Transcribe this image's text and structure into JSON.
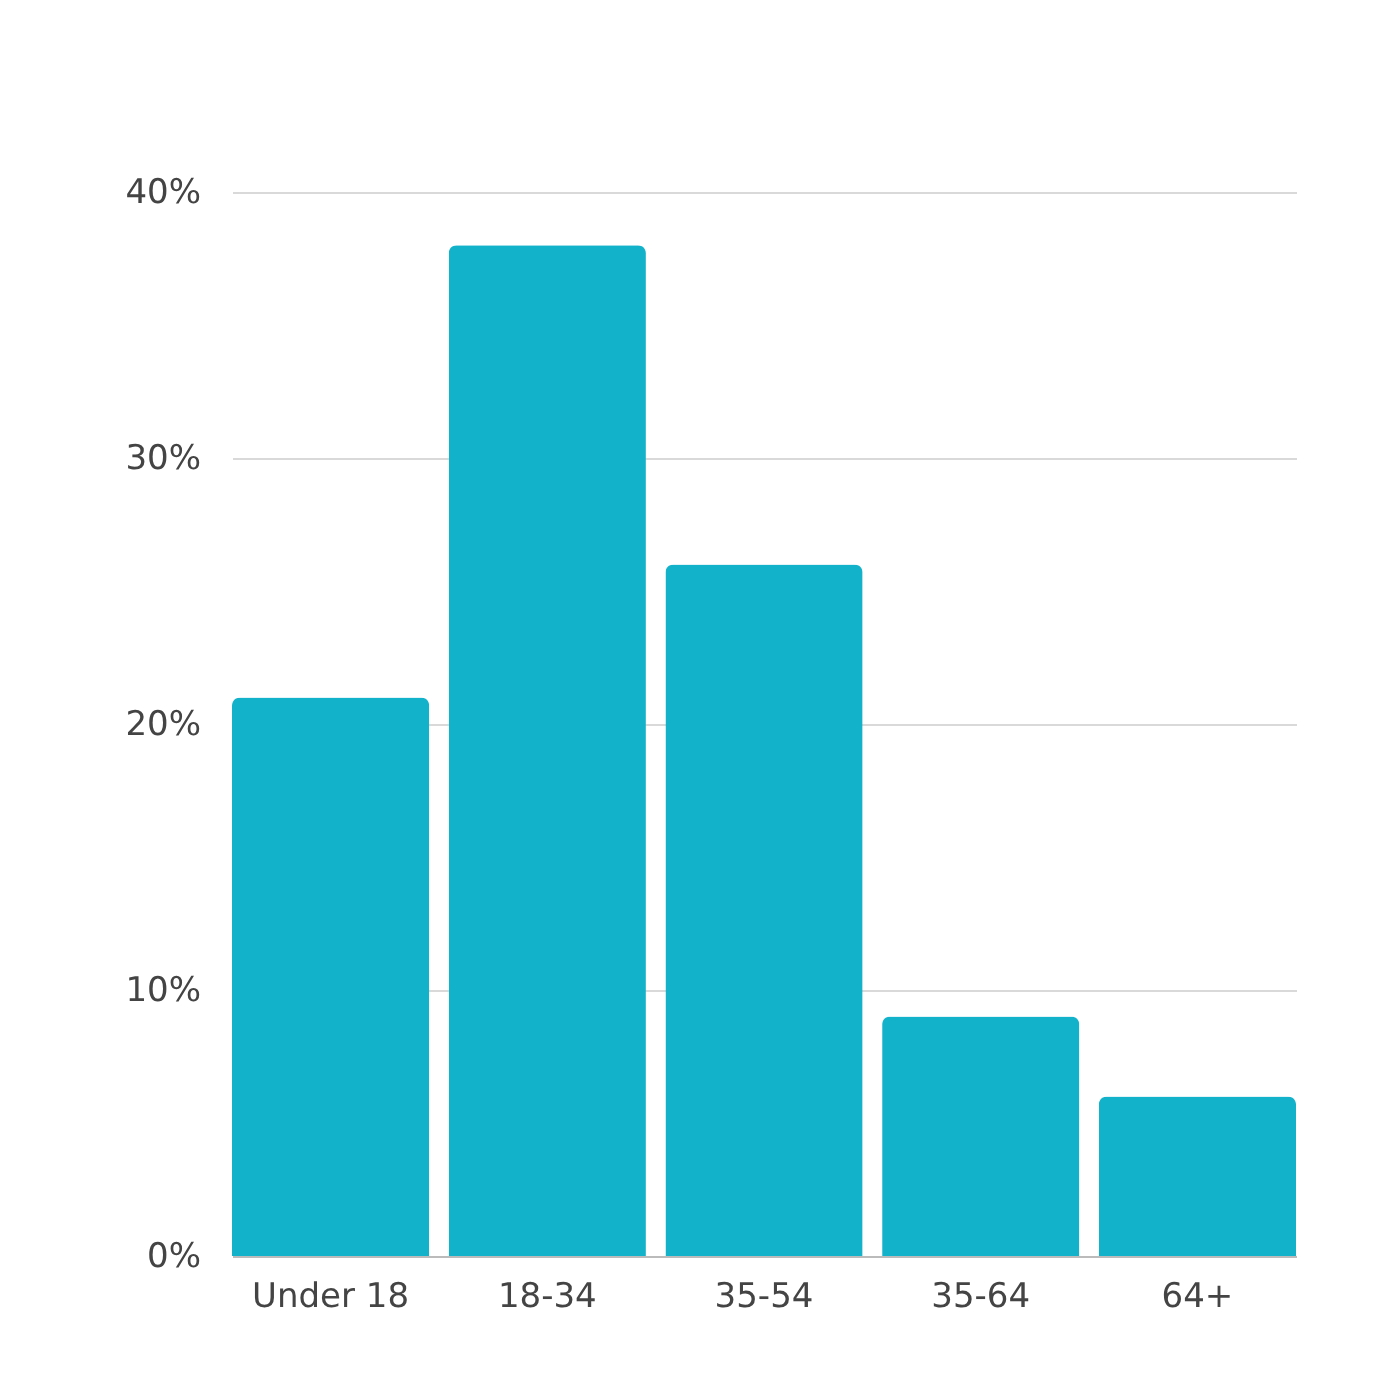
{
  "chart_data": {
    "type": "bar",
    "categories": [
      "Under 18",
      "18-34",
      "35-54",
      "35-64",
      "64+"
    ],
    "values": [
      21,
      38,
      26,
      9,
      6
    ],
    "color": "#12b2cb",
    "ylim": [
      0,
      40
    ],
    "yticks": [
      {
        "value": 0,
        "label": "0%"
      },
      {
        "value": 10,
        "label": "10%"
      },
      {
        "value": 20,
        "label": "20%"
      },
      {
        "value": 30,
        "label": "30%"
      },
      {
        "value": 40,
        "label": "40%"
      }
    ],
    "grid": "y"
  }
}
